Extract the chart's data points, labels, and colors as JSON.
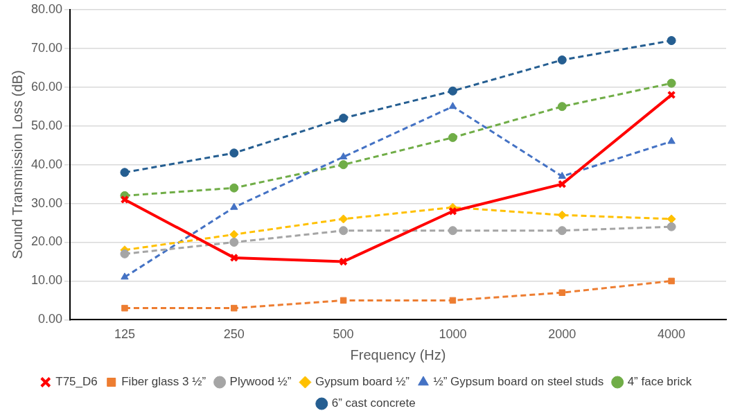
{
  "chart_data": {
    "type": "line",
    "xlabel": "Frequency (Hz)",
    "ylabel": "Sound Transmission Loss (dB)",
    "categories": [
      "125",
      "250",
      "500",
      "1000",
      "2000",
      "4000"
    ],
    "ylim": [
      0,
      80
    ],
    "yticks": [
      {
        "value": 0,
        "label": "0.00"
      },
      {
        "value": 10,
        "label": "10.00"
      },
      {
        "value": 20,
        "label": "20.00"
      },
      {
        "value": 30,
        "label": "30.00"
      },
      {
        "value": 40,
        "label": "40.00"
      },
      {
        "value": 50,
        "label": "50.00"
      },
      {
        "value": 60,
        "label": "60.00"
      },
      {
        "value": 70,
        "label": "70.00"
      },
      {
        "value": 80,
        "label": "80.00"
      }
    ],
    "grid": "y",
    "legend": "bottom",
    "series": [
      {
        "name": "T75_D6",
        "color": "#ff0000",
        "marker": "cross",
        "line_style": "solid",
        "values": [
          31,
          16,
          15,
          28,
          35,
          58
        ]
      },
      {
        "name": "Fiber glass 3 ½”",
        "color": "#ed7d31",
        "marker": "square",
        "line_style": "dashed",
        "values": [
          3,
          3,
          5,
          5,
          7,
          10
        ]
      },
      {
        "name": "Plywood ½”",
        "color": "#a5a5a5",
        "marker": "circle",
        "line_style": "dashed",
        "values": [
          17,
          20,
          23,
          23,
          23,
          24
        ]
      },
      {
        "name": "Gypsum board ½”",
        "color": "#ffc000",
        "marker": "diamond",
        "line_style": "dashed",
        "values": [
          18,
          22,
          26,
          29,
          27,
          26
        ]
      },
      {
        "name": "½” Gypsum board on steel studs",
        "color": "#4472c4",
        "marker": "triangle",
        "line_style": "dashed",
        "values": [
          11,
          29,
          42,
          55,
          37,
          46
        ]
      },
      {
        "name": "4” face brick",
        "color": "#70ad47",
        "marker": "circle",
        "line_style": "dashed",
        "values": [
          32,
          34,
          40,
          47,
          55,
          61
        ]
      },
      {
        "name": "6” cast concrete",
        "color": "#255e91",
        "marker": "circle",
        "line_style": "dashed",
        "values": [
          38,
          43,
          52,
          59,
          67,
          72
        ]
      }
    ]
  }
}
